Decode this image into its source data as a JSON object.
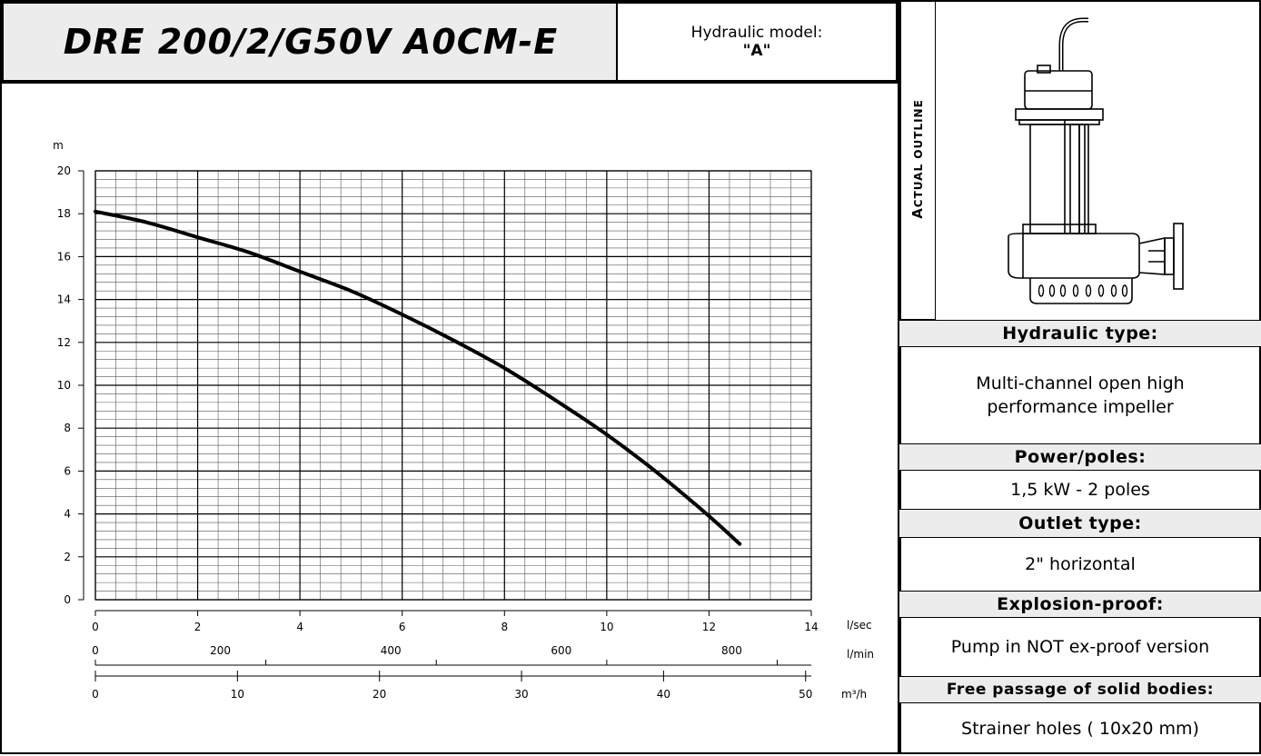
{
  "header": {
    "model_name": "DRE 200/2/G50V A0CM-E",
    "hydraulic_model_label": "Hydraulic model:",
    "hydraulic_model_value": "\"A\""
  },
  "outline_label": {
    "first_letter": "A",
    "rest": "CTUAL OUTLINE"
  },
  "specs": {
    "hydraulic_type_label": "Hydraulic type:",
    "hydraulic_type_value": "Multi-channel open high performance impeller",
    "power_label": "Power/poles:",
    "power_value": "1,5 kW - 2 poles",
    "outlet_label": "Outlet type:",
    "outlet_value": "2\" horizontal",
    "explosion_label": "Explosion-proof:",
    "explosion_value": "Pump in NOT ex-proof version",
    "free_passage_label": "Free passage of solid bodies:",
    "free_passage_value": "Strainer holes ( 10x20 mm)"
  },
  "chart_data": {
    "type": "line",
    "title": "",
    "ylabel": "m",
    "ylim": [
      0,
      20
    ],
    "yticks": [
      0,
      2,
      4,
      6,
      8,
      10,
      12,
      14,
      16,
      18,
      20
    ],
    "xlim": [
      0,
      14
    ],
    "x_axes": [
      {
        "unit": "l/sec",
        "ticks": [
          "0",
          "2",
          "4",
          "6",
          "8",
          "10",
          "12",
          "14"
        ],
        "tick_values": [
          0,
          2,
          4,
          6,
          8,
          10,
          12,
          14
        ]
      },
      {
        "unit": "l/min",
        "ticks": [
          "0",
          "200",
          "400",
          "600",
          "800"
        ],
        "tick_values": [
          0,
          200,
          400,
          600,
          800
        ]
      },
      {
        "unit": "m³/h",
        "ticks": [
          "0",
          "10",
          "20",
          "30",
          "40",
          "50"
        ],
        "tick_values": [
          0,
          10,
          20,
          30,
          40,
          50
        ]
      }
    ],
    "series": [
      {
        "x": [
          0,
          1,
          2,
          3,
          4,
          5,
          6,
          7,
          8,
          9,
          10,
          11,
          12,
          12.6
        ],
        "values": [
          18.1,
          17.6,
          16.9,
          16.2,
          15.3,
          14.4,
          13.3,
          12.1,
          10.8,
          9.3,
          7.7,
          5.9,
          3.9,
          2.6
        ]
      }
    ],
    "grid": true,
    "color": "#000000"
  }
}
